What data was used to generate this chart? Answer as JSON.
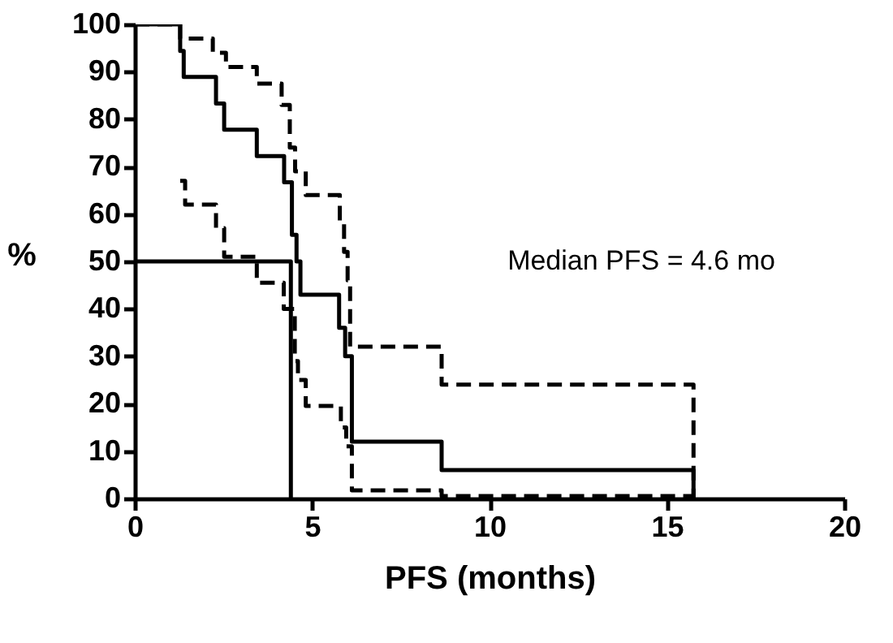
{
  "chart_data": {
    "type": "step",
    "xlabel": "PFS (months)",
    "ylabel": "%",
    "annotations": [
      "Median PFS = 4.6 mo"
    ],
    "xlim": [
      0,
      20
    ],
    "xticks": [
      0,
      5,
      10,
      15,
      20
    ],
    "ylim": [
      0,
      100
    ],
    "yticks": [
      0,
      10,
      20,
      30,
      40,
      50,
      60,
      70,
      80,
      90,
      100
    ],
    "grid": false,
    "marker": "none",
    "series": [
      {
        "color": "#000000",
        "line_style": "solid",
        "x": [
          0,
          1.28,
          1.38,
          2.29,
          2.52,
          3.44,
          4.21,
          4.43,
          4.56,
          4.67,
          5.76,
          5.93,
          6.12,
          8.65,
          15.75,
          15.75
        ],
        "values": [
          100,
          94.4,
          88.9,
          83.3,
          77.8,
          72.2,
          66.7,
          55.6,
          50,
          43,
          36,
          30,
          12,
          6,
          6,
          0
        ]
      },
      {
        "color": "#000000",
        "line_style": "dashed",
        "x": [
          0,
          1.28,
          2.2,
          2.57,
          3.44,
          4.14,
          4.37,
          4.52,
          4.82,
          5.78,
          5.9,
          6.0,
          6.07,
          8.65,
          15.75,
          15.75
        ],
        "values": [
          100,
          97,
          94,
          91,
          87.5,
          83,
          74,
          69,
          64,
          58,
          52,
          46,
          32,
          24,
          24,
          0
        ]
      },
      {
        "color": "#000000",
        "line_style": "dashed",
        "x": [
          1.28,
          1.42,
          2.29,
          2.52,
          3.44,
          4.2,
          4.51,
          4.6,
          4.82,
          5.81,
          5.96,
          6.12,
          8.65,
          15.75
        ],
        "values": [
          67,
          62,
          57,
          51,
          45.5,
          40,
          29,
          25,
          19.5,
          15,
          11,
          1.7,
          0.5,
          0.5
        ]
      },
      {
        "color": "#000000",
        "line_style": "solid",
        "x": [
          0,
          4.4,
          4.4
        ],
        "values": [
          50,
          50,
          0
        ]
      }
    ]
  }
}
